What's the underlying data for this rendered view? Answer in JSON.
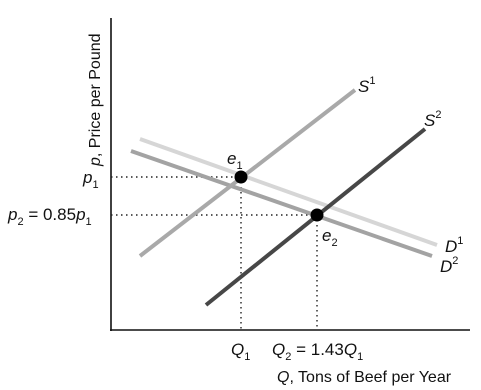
{
  "y_axis": {
    "var": "p",
    "text": ", Price per Pound"
  },
  "x_axis": {
    "var": "Q",
    "text": ", Tons of Beef per Year"
  },
  "curves": {
    "s1": {
      "base": "S",
      "sup": "1"
    },
    "s2": {
      "base": "S",
      "sup": "2"
    },
    "d1": {
      "base": "D",
      "sup": "1"
    },
    "d2": {
      "base": "D",
      "sup": "2"
    }
  },
  "points": {
    "e1": {
      "base": "e",
      "sub": "1"
    },
    "e2": {
      "base": "e",
      "sub": "2"
    }
  },
  "y_ticks": {
    "p1": {
      "base": "p",
      "sub": "1"
    },
    "p2": {
      "base": "p",
      "sub": "2",
      "rest": " = 0.85",
      "rest_base": "p",
      "rest_sub": "1"
    }
  },
  "x_ticks": {
    "q1": {
      "base": "Q",
      "sub": "1"
    },
    "q2": {
      "base": "Q",
      "sub": "2",
      "rest": " = 1.43",
      "rest_base": "Q",
      "rest_sub": "1"
    }
  },
  "colors": {
    "s1": "#a9a9a9",
    "s2": "#474747",
    "d1": "#d6d6d6",
    "d2": "#a3a3a3",
    "axis": "#111111"
  }
}
